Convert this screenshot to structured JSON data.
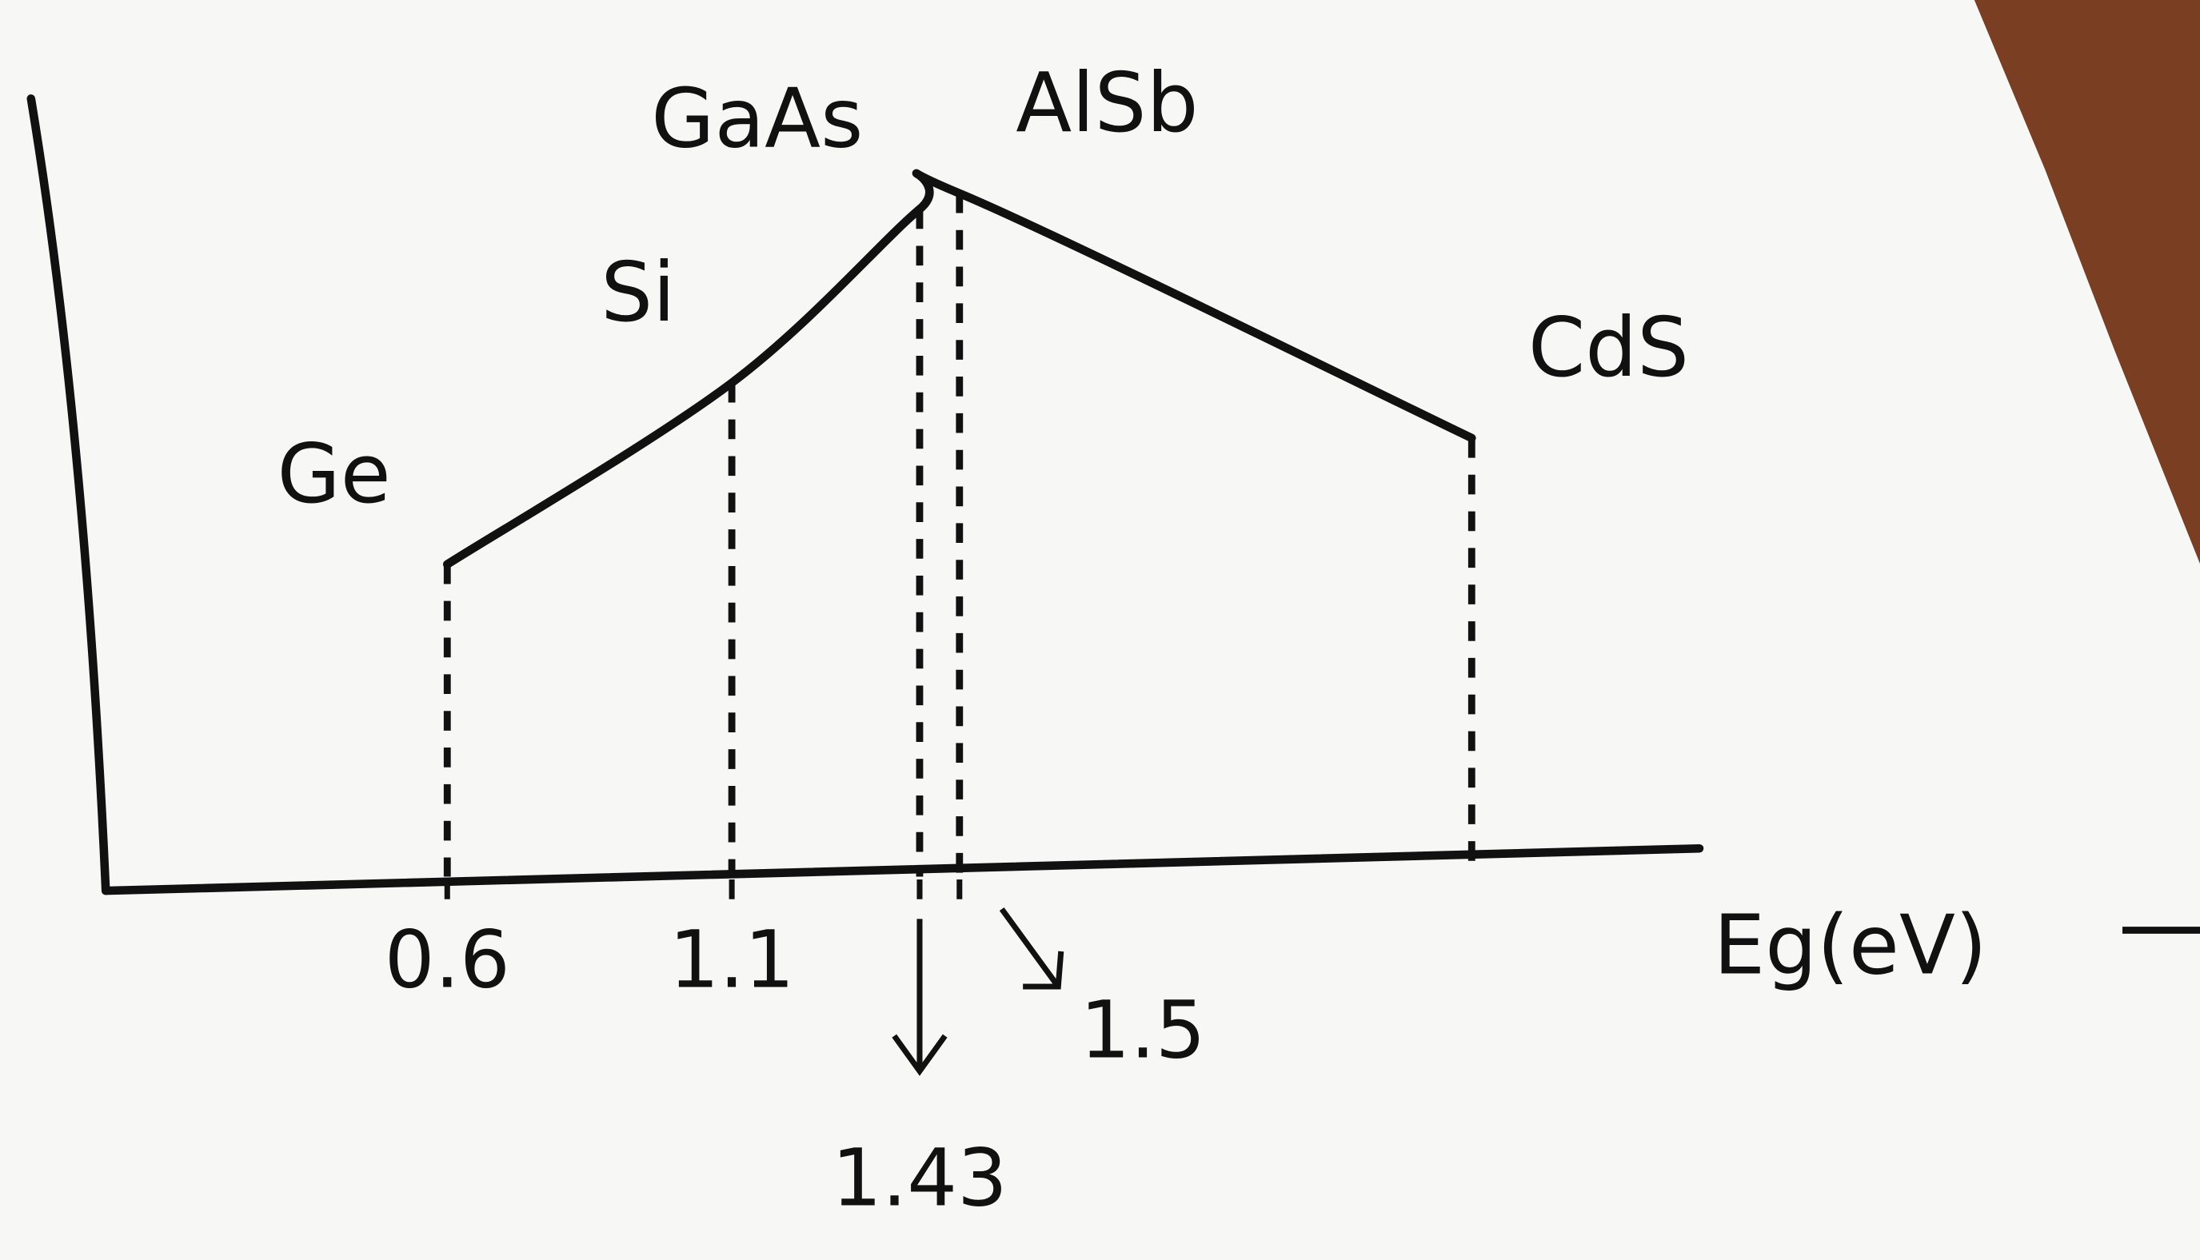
{
  "chart_data": {
    "type": "line",
    "x_label": "Eg(eV)",
    "x": [
      0.6,
      1.1,
      1.43,
      1.5,
      2.4
    ],
    "values": [
      41,
      64,
      86,
      88,
      57
    ],
    "point_labels": [
      "Ge",
      "Si",
      "GaAs",
      "AlSb",
      "CdS"
    ],
    "xlim": [
      0,
      2.8
    ],
    "xticks": [
      0.6,
      1.1,
      1.43,
      1.5
    ],
    "ylim": [
      0,
      100
    ],
    "color": "#111111"
  }
}
